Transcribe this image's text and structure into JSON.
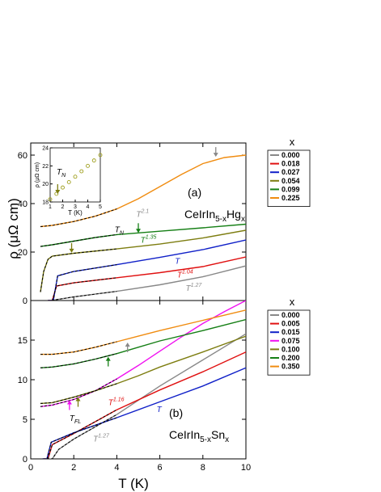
{
  "xlabel": "T (K)",
  "ylabel": "ρ (μΩ cm)",
  "colors": {
    "0.000": "#888888",
    "0.018": "#e01010",
    "0.027": "#1020c8",
    "0.054": "#7d7d10",
    "0.099": "#157f15",
    "0.225": "#f08c10",
    "0.005": "#e01010",
    "0.015": "#1020c8",
    "0.075": "#f010f0",
    "0.100": "#7d7d10",
    "0.200": "#157f15",
    "0.350": "#f08c10"
  },
  "chart_data": [
    {
      "type": "line",
      "panel_label": "(a)",
      "compound": "CeIrIn5-xHgx",
      "legend_title": "x",
      "legend_placement": "right",
      "xlim": [
        0,
        10
      ],
      "ylim": [
        0,
        65
      ],
      "x_ticks": [
        0,
        2,
        4,
        6,
        8,
        10
      ],
      "y_ticks": [
        0,
        20,
        40,
        60
      ],
      "series": [
        {
          "name": "0.000",
          "points": [
            [
              0.8,
              0
            ],
            [
              1.0,
              0
            ],
            [
              1.15,
              0.3
            ],
            [
              2,
              1.5
            ],
            [
              4,
              3.8
            ],
            [
              6,
              6.5
            ],
            [
              8,
              9.8
            ],
            [
              10,
              14.3
            ]
          ]
        },
        {
          "name": "0.018",
          "points": [
            [
              0.8,
              0
            ],
            [
              1.0,
              0
            ],
            [
              1.2,
              6
            ],
            [
              2,
              7.3
            ],
            [
              4,
              9.4
            ],
            [
              6,
              11.5
            ],
            [
              8,
              14
            ],
            [
              10,
              18
            ]
          ]
        },
        {
          "name": "0.027",
          "points": [
            [
              0.8,
              0
            ],
            [
              1.05,
              0
            ],
            [
              1.25,
              10.2
            ],
            [
              2,
              12
            ],
            [
              4,
              14.8
            ],
            [
              6,
              17.8
            ],
            [
              8,
              21
            ],
            [
              10,
              25
            ]
          ]
        },
        {
          "name": "0.054",
          "points": [
            [
              0.45,
              3.5
            ],
            [
              0.6,
              12
            ],
            [
              0.8,
              17
            ],
            [
              1.0,
              18.3
            ],
            [
              2,
              19.5
            ],
            [
              4,
              21.3
            ],
            [
              6,
              23.3
            ],
            [
              8,
              25.8
            ],
            [
              10,
              29
            ]
          ]
        },
        {
          "name": "0.099",
          "points": [
            [
              0.45,
              22.3
            ],
            [
              1,
              23
            ],
            [
              2,
              24.5
            ],
            [
              3,
              26
            ],
            [
              4,
              27.2
            ],
            [
              5,
              27.9
            ],
            [
              6,
              28.6
            ],
            [
              8,
              30
            ],
            [
              10,
              31.5
            ]
          ]
        },
        {
          "name": "0.225",
          "points": [
            [
              0.45,
              30.5
            ],
            [
              1,
              31
            ],
            [
              2,
              32.6
            ],
            [
              3,
              34.8
            ],
            [
              4,
              37.8
            ],
            [
              5,
              42
            ],
            [
              6,
              47
            ],
            [
              7,
              52
            ],
            [
              8,
              56.5
            ],
            [
              9,
              59
            ],
            [
              10,
              60
            ]
          ]
        }
      ],
      "annotations": [
        {
          "text": "T^2.1",
          "x": 4.9,
          "y": 34.5,
          "color": "#888888"
        },
        {
          "text": "T_N",
          "x": 3.9,
          "y": 28.2,
          "color": "#000000"
        },
        {
          "text": "T^1.35",
          "x": 5.1,
          "y": 23.8,
          "color": "#157f15"
        },
        {
          "text": "T",
          "x": 6.7,
          "y": 15.2,
          "color": "#1020c8"
        },
        {
          "text": "T^1.04",
          "x": 6.8,
          "y": 9.5,
          "color": "#e01010"
        },
        {
          "text": "T^1.27",
          "x": 7.2,
          "y": 4.0,
          "color": "#888888"
        }
      ],
      "inset": {
        "ylabel": "ρ (μΩ cm)",
        "xlabel": "T (K)",
        "label": "T_N",
        "xlim": [
          1,
          5
        ],
        "ylim": [
          18,
          24
        ],
        "x_ticks": [
          1,
          2,
          3,
          4,
          5
        ],
        "y_ticks": [
          18,
          20,
          22,
          24
        ],
        "points": [
          [
            1,
            18.3
          ],
          [
            1.5,
            18.9
          ],
          [
            2,
            19.6
          ],
          [
            2.5,
            20.2
          ],
          [
            3,
            20.8
          ],
          [
            3.5,
            21.4
          ],
          [
            4,
            22.0
          ],
          [
            4.5,
            22.6
          ],
          [
            5,
            23.2
          ]
        ]
      }
    },
    {
      "type": "line",
      "panel_label": "(b)",
      "compound": "CeIrIn5-xSnx",
      "legend_title": "x",
      "legend_placement": "right",
      "xlim": [
        0,
        10
      ],
      "ylim": [
        0,
        20
      ],
      "x_ticks": [
        0,
        2,
        4,
        6,
        8,
        10
      ],
      "y_ticks": [
        0,
        5,
        10,
        15
      ],
      "series": [
        {
          "name": "0.000",
          "points": [
            [
              0.75,
              0
            ],
            [
              1.0,
              0
            ],
            [
              1.3,
              1.2
            ],
            [
              2,
              2.5
            ],
            [
              4,
              5.6
            ],
            [
              6,
              9.2
            ],
            [
              8,
              12.5
            ],
            [
              10,
              15.8
            ]
          ]
        },
        {
          "name": "0.005",
          "points": [
            [
              0.6,
              0
            ],
            [
              0.8,
              0
            ],
            [
              1.0,
              1.8
            ],
            [
              2,
              3.2
            ],
            [
              4,
              6.2
            ],
            [
              6,
              8.7
            ],
            [
              8,
              11
            ],
            [
              10,
              13.5
            ]
          ]
        },
        {
          "name": "0.015",
          "points": [
            [
              0.55,
              0
            ],
            [
              0.75,
              0
            ],
            [
              0.95,
              2.1
            ],
            [
              2,
              3.3
            ],
            [
              4,
              5.2
            ],
            [
              6,
              7.2
            ],
            [
              8,
              9.2
            ],
            [
              10,
              11.5
            ]
          ]
        },
        {
          "name": "0.075",
          "points": [
            [
              0.45,
              6.6
            ],
            [
              1,
              6.8
            ],
            [
              2,
              7.5
            ],
            [
              3,
              8.6
            ],
            [
              4,
              10.1
            ],
            [
              5,
              11.8
            ],
            [
              6,
              13.6
            ],
            [
              7,
              15.4
            ],
            [
              8,
              17.1
            ],
            [
              9,
              18.6
            ],
            [
              10,
              20
            ]
          ]
        },
        {
          "name": "0.100",
          "points": [
            [
              0.45,
              7
            ],
            [
              1,
              7.1
            ],
            [
              2,
              7.8
            ],
            [
              3,
              8.6
            ],
            [
              4,
              9.5
            ],
            [
              5,
              10.5
            ],
            [
              6,
              11.6
            ],
            [
              8,
              13.5
            ],
            [
              10,
              15.5
            ]
          ]
        },
        {
          "name": "0.200",
          "points": [
            [
              0.45,
              11.5
            ],
            [
              1,
              11.6
            ],
            [
              2,
              12
            ],
            [
              3,
              12.6
            ],
            [
              4,
              13.3
            ],
            [
              5,
              14.1
            ],
            [
              6,
              14.9
            ],
            [
              8,
              16.2
            ],
            [
              10,
              17.6
            ]
          ]
        },
        {
          "name": "0.350",
          "points": [
            [
              0.45,
              13.2
            ],
            [
              1,
              13.2
            ],
            [
              2,
              13.5
            ],
            [
              3,
              14.1
            ],
            [
              4,
              14.8
            ],
            [
              5,
              15.5
            ],
            [
              6,
              16.2
            ],
            [
              8,
              17.5
            ],
            [
              10,
              18.8
            ]
          ]
        }
      ],
      "annotations": [
        {
          "text": "T_FL",
          "x": 1.8,
          "y": 4.8,
          "color": "#000000"
        },
        {
          "text": "T^1.16",
          "x": 3.6,
          "y": 6.8,
          "color": "#e01010"
        },
        {
          "text": "T",
          "x": 5.85,
          "y": 5.9,
          "color": "#1020c8"
        },
        {
          "text": "T^1.27",
          "x": 2.9,
          "y": 2.2,
          "color": "#888888"
        }
      ]
    }
  ]
}
